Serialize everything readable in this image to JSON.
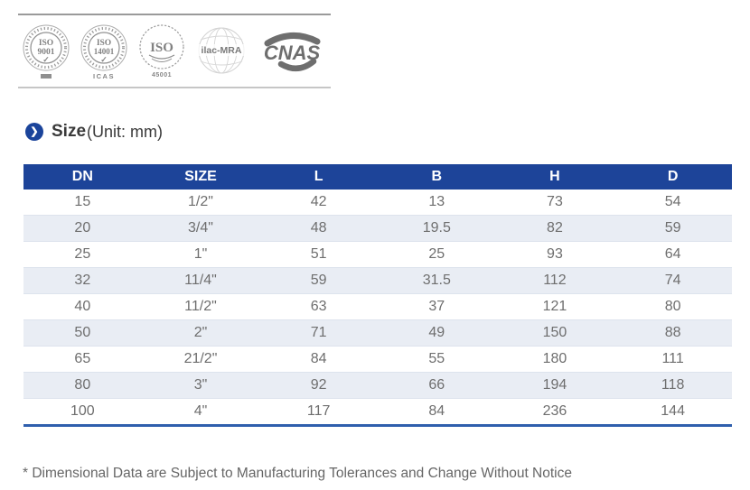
{
  "certifications": {
    "badges": [
      {
        "id": "iso-9001-badge",
        "line1": "ISO",
        "line2": "9001",
        "mark": "✓"
      },
      {
        "id": "iso-14001-badge",
        "line1": "ISO",
        "line2": "14001",
        "mark": "✓",
        "sub": "ICAS"
      },
      {
        "id": "iso-45001-badge",
        "line1": "ISO",
        "sub": "45001"
      },
      {
        "id": "ilac-mra-badge",
        "label": "ilac-MRA"
      },
      {
        "id": "cnas-badge",
        "label": "CNAS"
      }
    ]
  },
  "heading": {
    "title": "Size",
    "unit": "(Unit: mm)"
  },
  "table": {
    "columns": [
      "DN",
      "SIZE",
      "L",
      "B",
      "H",
      "D"
    ],
    "rows": [
      [
        "15",
        "1/2\"",
        "42",
        "13",
        "73",
        "54"
      ],
      [
        "20",
        "3/4\"",
        "48",
        "19.5",
        "82",
        "59"
      ],
      [
        "25",
        "1\"",
        "51",
        "25",
        "93",
        "64"
      ],
      [
        "32",
        "11/4\"",
        "59",
        "31.5",
        "112",
        "74"
      ],
      [
        "40",
        "11/2\"",
        "63",
        "37",
        "121",
        "80"
      ],
      [
        "50",
        "2\"",
        "71",
        "49",
        "150",
        "88"
      ],
      [
        "65",
        "21/2\"",
        "84",
        "55",
        "180",
        "111"
      ],
      [
        "80",
        "3\"",
        "92",
        "66",
        "194",
        "118"
      ],
      [
        "100",
        "4\"",
        "117",
        "84",
        "236",
        "144"
      ]
    ]
  },
  "footnote": "* Dimensional Data are Subject to Manufacturing Tolerances and Change Without Notice",
  "colors": {
    "header_bg": "#1d4499",
    "row_alt": "#e9edf4",
    "accent": "#1b449b",
    "table_bottom_border": "#2f5fad"
  }
}
